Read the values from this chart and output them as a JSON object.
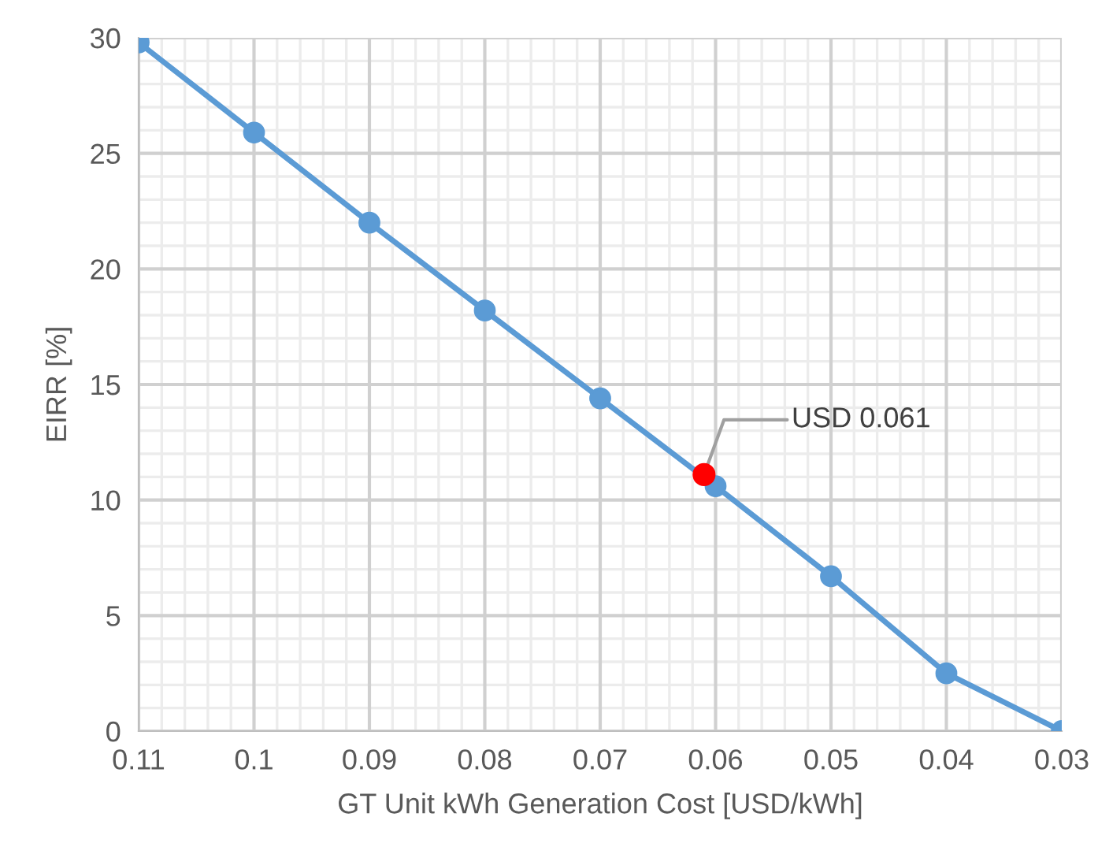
{
  "chart_data": {
    "type": "line",
    "xlabel": "GT Unit kWh Generation Cost [USD/kWh]",
    "ylabel": "EIRR [%]",
    "x": [
      0.11,
      0.1,
      0.09,
      0.08,
      0.07,
      0.06,
      0.05,
      0.04,
      0.03
    ],
    "series": [
      {
        "color": "#5b9bd5",
        "values": [
          29.8,
          25.9,
          22.0,
          18.2,
          14.4,
          10.6,
          6.7,
          2.5,
          0
        ]
      },
      {
        "type": "scatter",
        "color": "#ff0000",
        "x": [
          0.061
        ],
        "values": [
          11.1
        ]
      }
    ],
    "xlim": [
      0.11,
      0.03
    ],
    "xticks": [
      0.11,
      0.1,
      0.09,
      0.08,
      0.07,
      0.06,
      0.05,
      0.04,
      0.03
    ],
    "ylim": [
      0,
      30
    ],
    "yticks": [
      0,
      5,
      10,
      15,
      20,
      25,
      30
    ],
    "grid": true,
    "marker": "circle",
    "line_style": "solid",
    "legend": false,
    "annotations": [
      {
        "text": "USD 0.061",
        "x": 0.061,
        "y": 11.1
      }
    ]
  }
}
